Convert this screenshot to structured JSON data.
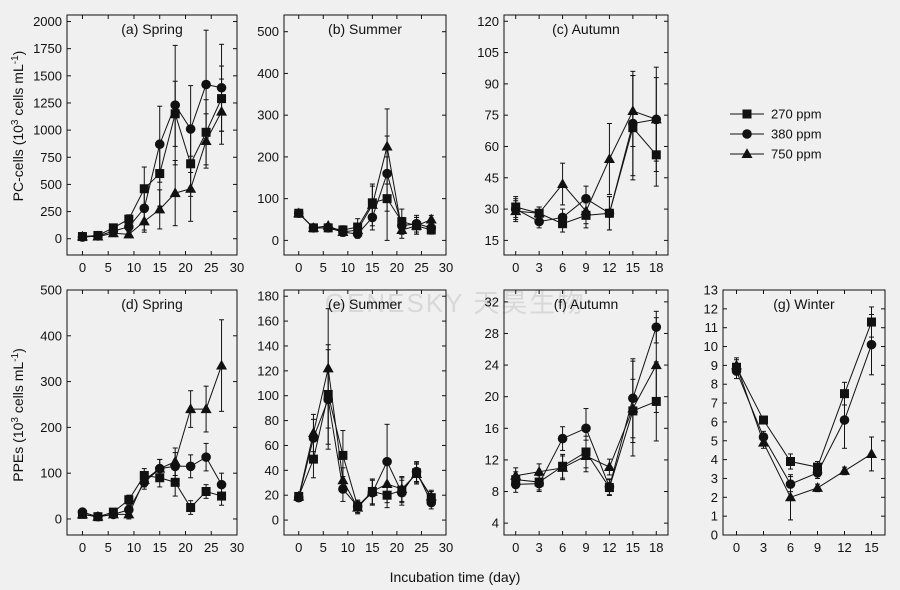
{
  "watermark": "GENESKY 天昊生物",
  "x_axis_label": "Incubation time (day)",
  "legend": [
    {
      "label": "270 ppm",
      "marker": "square"
    },
    {
      "label": "380 ppm",
      "marker": "circle"
    },
    {
      "label": "750 ppm",
      "marker": "triangle"
    }
  ],
  "chart_data": [
    {
      "type": "line",
      "title": "(a) Spring",
      "ylabel_text": "PC-cells (10",
      "ylabel_sup_exp": "3",
      "ylabel_text2": " cells mL",
      "ylabel_sup_unit": "-1",
      "ylabel_text3": ")",
      "xlim": [
        -3,
        30
      ],
      "xticks": [
        0,
        5,
        10,
        15,
        20,
        25,
        30
      ],
      "ylim": [
        -150,
        2060
      ],
      "yticks": [
        0,
        250,
        500,
        750,
        1000,
        1250,
        1500,
        1750,
        2000
      ],
      "x": [
        0,
        3,
        6,
        9,
        12,
        15,
        18,
        21,
        24,
        27
      ],
      "series": [
        {
          "name": "270 ppm",
          "marker": "square",
          "y": [
            20,
            30,
            100,
            180,
            460,
            600,
            1150,
            690,
            980,
            1290
          ],
          "err": [
            15,
            15,
            30,
            40,
            200,
            300,
            300,
            300,
            300,
            300
          ]
        },
        {
          "name": "380 ppm",
          "marker": "circle",
          "y": [
            15,
            25,
            70,
            110,
            280,
            870,
            1230,
            1010,
            1420,
            1390
          ],
          "err": [
            15,
            15,
            30,
            40,
            200,
            350,
            550,
            400,
            500,
            400
          ]
        },
        {
          "name": "750 ppm",
          "marker": "triangle",
          "y": [
            20,
            20,
            50,
            40,
            160,
            270,
            420,
            460,
            900,
            1170
          ],
          "err": [
            15,
            15,
            30,
            30,
            100,
            180,
            300,
            300,
            250,
            300
          ]
        }
      ]
    },
    {
      "type": "line",
      "title": "(b) Summer",
      "xlim": [
        -3,
        30
      ],
      "xticks": [
        0,
        5,
        10,
        15,
        20,
        25,
        30
      ],
      "ylim": [
        -35,
        540
      ],
      "yticks": [
        0,
        100,
        200,
        300,
        400,
        500
      ],
      "x": [
        0,
        3,
        6,
        9,
        12,
        15,
        18,
        21,
        24,
        27
      ],
      "series": [
        {
          "name": "270 ppm",
          "marker": "square",
          "y": [
            65,
            30,
            30,
            25,
            32,
            90,
            100,
            45,
            35,
            25
          ],
          "err": [
            5,
            5,
            5,
            10,
            20,
            40,
            100,
            30,
            20,
            10
          ]
        },
        {
          "name": "380 ppm",
          "marker": "circle",
          "y": [
            65,
            30,
            30,
            20,
            15,
            55,
            160,
            35,
            40,
            30
          ],
          "err": [
            5,
            5,
            5,
            10,
            10,
            30,
            90,
            20,
            20,
            10
          ]
        },
        {
          "name": "750 ppm",
          "marker": "triangle",
          "y": [
            65,
            30,
            35,
            20,
            25,
            85,
            225,
            25,
            35,
            50
          ],
          "err": [
            5,
            5,
            5,
            10,
            15,
            50,
            90,
            20,
            20,
            10
          ]
        }
      ]
    },
    {
      "type": "line",
      "title": "(c) Autumn",
      "xlim": [
        -1.5,
        19.5
      ],
      "xticks": [
        0,
        3,
        6,
        9,
        12,
        15,
        18
      ],
      "ylim": [
        8,
        123
      ],
      "yticks": [
        15,
        30,
        45,
        60,
        75,
        90,
        105,
        120
      ],
      "x": [
        0,
        3,
        6,
        9,
        12,
        15,
        18
      ],
      "series": [
        {
          "name": "270 ppm",
          "marker": "square",
          "y": [
            31,
            28,
            23,
            27,
            28,
            69,
            56
          ],
          "err": [
            5,
            3,
            4,
            6,
            8,
            25,
            15
          ]
        },
        {
          "name": "380 ppm",
          "marker": "circle",
          "y": [
            30,
            24,
            26,
            35,
            28,
            71,
            73
          ],
          "err": [
            5,
            3,
            4,
            6,
            8,
            25,
            25
          ]
        },
        {
          "name": "750 ppm",
          "marker": "triangle",
          "y": [
            29,
            28,
            42,
            29,
            54,
            77,
            73
          ],
          "err": [
            5,
            3,
            10,
            6,
            17,
            17,
            20
          ]
        }
      ]
    },
    {
      "type": "line",
      "title": "(d) Spring",
      "ylabel_text": "PPEs (10",
      "ylabel_sup_exp": "3",
      "ylabel_text2": " cells mL",
      "ylabel_sup_unit": "-1",
      "ylabel_text3": ")",
      "xlim": [
        -3,
        30
      ],
      "xticks": [
        0,
        5,
        10,
        15,
        20,
        25,
        30
      ],
      "ylim": [
        -35,
        500
      ],
      "yticks": [
        0,
        100,
        200,
        300,
        400,
        500
      ],
      "x": [
        0,
        3,
        6,
        9,
        12,
        15,
        18,
        21,
        24,
        27
      ],
      "series": [
        {
          "name": "270 ppm",
          "marker": "square",
          "y": [
            10,
            5,
            15,
            42,
            95,
            90,
            80,
            25,
            60,
            50
          ],
          "err": [
            5,
            5,
            5,
            10,
            15,
            20,
            30,
            15,
            15,
            20
          ]
        },
        {
          "name": "380 ppm",
          "marker": "circle",
          "y": [
            15,
            5,
            10,
            20,
            80,
            110,
            115,
            115,
            135,
            75
          ],
          "err": [
            5,
            5,
            5,
            10,
            15,
            20,
            30,
            25,
            30,
            25
          ]
        },
        {
          "name": "750 ppm",
          "marker": "triangle",
          "y": [
            10,
            5,
            10,
            10,
            85,
            110,
            125,
            240,
            240,
            335
          ],
          "err": [
            5,
            5,
            5,
            10,
            15,
            20,
            30,
            40,
            50,
            100
          ]
        }
      ]
    },
    {
      "type": "line",
      "title": "(e) Summer",
      "xlim": [
        -3,
        30
      ],
      "xticks": [
        0,
        5,
        10,
        15,
        20,
        25,
        30
      ],
      "ylim": [
        -12,
        185
      ],
      "yticks": [
        0,
        20,
        40,
        60,
        80,
        100,
        120,
        140,
        160,
        180
      ],
      "x": [
        0,
        3,
        6,
        9,
        12,
        15,
        18,
        21,
        24,
        27
      ],
      "series": [
        {
          "name": "270 ppm",
          "marker": "square",
          "y": [
            19,
            49,
            101,
            52,
            11,
            23,
            20,
            24,
            38,
            18
          ],
          "err": [
            3,
            15,
            40,
            20,
            5,
            10,
            10,
            10,
            8,
            5
          ]
        },
        {
          "name": "380 ppm",
          "marker": "circle",
          "y": [
            18,
            66,
            97,
            25,
            11,
            22,
            47,
            22,
            39,
            14
          ],
          "err": [
            3,
            15,
            40,
            10,
            5,
            10,
            30,
            10,
            8,
            5
          ]
        },
        {
          "name": "750 ppm",
          "marker": "triangle",
          "y": [
            19,
            70,
            122,
            32,
            10,
            23,
            29,
            25,
            37,
            19
          ],
          "err": [
            3,
            15,
            48,
            10,
            5,
            10,
            15,
            10,
            8,
            5
          ]
        }
      ]
    },
    {
      "type": "line",
      "title": "(f) Autumn",
      "xlim": [
        -1.5,
        19.5
      ],
      "xticks": [
        0,
        3,
        6,
        9,
        12,
        15,
        18
      ],
      "ylim": [
        2.5,
        33.5
      ],
      "yticks": [
        4,
        8,
        12,
        16,
        20,
        24,
        28,
        32
      ],
      "x": [
        0,
        3,
        6,
        9,
        12,
        15,
        18
      ],
      "series": [
        {
          "name": "270 ppm",
          "marker": "square",
          "y": [
            9.5,
            9.2,
            11.2,
            13,
            8.5,
            18.2,
            19.4
          ],
          "err": [
            1,
            1,
            1.5,
            2,
            1,
            4,
            5
          ]
        },
        {
          "name": "380 ppm",
          "marker": "circle",
          "y": [
            8.9,
            9,
            14.7,
            16,
            8.6,
            19.8,
            28.8
          ],
          "err": [
            1,
            1,
            1.5,
            2.5,
            1,
            5,
            2
          ]
        },
        {
          "name": "750 ppm",
          "marker": "triangle",
          "y": [
            10,
            10.5,
            11,
            12.5,
            11.1,
            18.5,
            24
          ],
          "err": [
            1,
            1,
            1.5,
            2,
            1,
            6,
            6
          ]
        }
      ]
    },
    {
      "type": "line",
      "title": "(g) Winter",
      "xlim": [
        -1.5,
        16.5
      ],
      "xticks": [
        0,
        3,
        6,
        9,
        12,
        15
      ],
      "ylim": [
        0,
        13
      ],
      "yticks": [
        0,
        1,
        2,
        3,
        4,
        5,
        6,
        7,
        8,
        9,
        10,
        11,
        12,
        13
      ],
      "x": [
        0,
        3,
        6,
        9,
        12,
        15
      ],
      "series": [
        {
          "name": "270 ppm",
          "marker": "square",
          "y": [
            8.9,
            6.1,
            3.9,
            3.6,
            7.5,
            11.3
          ],
          "err": [
            0.4,
            0.2,
            0.4,
            0.3,
            0.6,
            0.8
          ]
        },
        {
          "name": "380 ppm",
          "marker": "circle",
          "y": [
            8.7,
            5.2,
            2.7,
            3.3,
            6.1,
            10.1
          ],
          "err": [
            0.4,
            0.3,
            0.4,
            0.3,
            1.5,
            1.6
          ]
        },
        {
          "name": "750 ppm",
          "marker": "triangle",
          "y": [
            9,
            4.9,
            2,
            2.5,
            3.4,
            4.3
          ],
          "err": [
            0.4,
            0.3,
            1.2,
            0.2,
            0.2,
            0.9
          ]
        }
      ]
    }
  ]
}
